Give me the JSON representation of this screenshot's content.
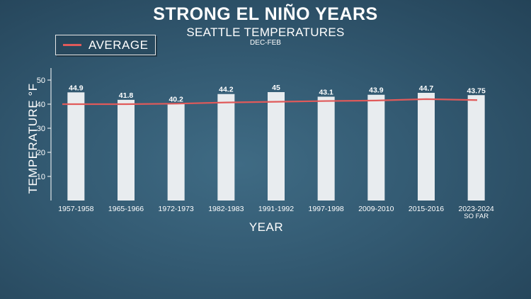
{
  "chart_data": {
    "type": "bar",
    "title": "STRONG EL NIÑO YEARS",
    "subtitle": "SEATTLE TEMPERATURES",
    "subsubtitle": "DEC-FEB",
    "xlabel": "YEAR",
    "ylabel": "TEMPERATURE °F",
    "categories": [
      [
        "1957-1958"
      ],
      [
        "1965-1966"
      ],
      [
        "1972-1973"
      ],
      [
        "1982-1983"
      ],
      [
        "1991-1992"
      ],
      [
        "1997-1998"
      ],
      [
        "2009-2010"
      ],
      [
        "2015-2016"
      ],
      [
        "2023-2024",
        "SO FAR"
      ]
    ],
    "values": [
      44.9,
      41.8,
      40.2,
      44.2,
      45,
      43.1,
      43.9,
      44.7,
      43.75
    ],
    "value_labels": [
      "44.9",
      "41.8",
      "40.2",
      "44.2",
      "45",
      "43.1",
      "43.9",
      "44.7",
      "43.75"
    ],
    "average": [
      40.0,
      40.0,
      40.2,
      40.7,
      41.0,
      41.3,
      41.5,
      42.1,
      41.7
    ],
    "legend": [
      {
        "name": "AVERAGE",
        "color": "#e05a5a"
      }
    ],
    "legend_position": "top-left",
    "yticks": [
      10,
      20,
      30,
      40,
      50
    ],
    "ylim": [
      0,
      55
    ],
    "grid": false,
    "colors": {
      "bar": "#e8ecef",
      "average_line": "#e05a5a",
      "text": "#ffffff"
    }
  }
}
